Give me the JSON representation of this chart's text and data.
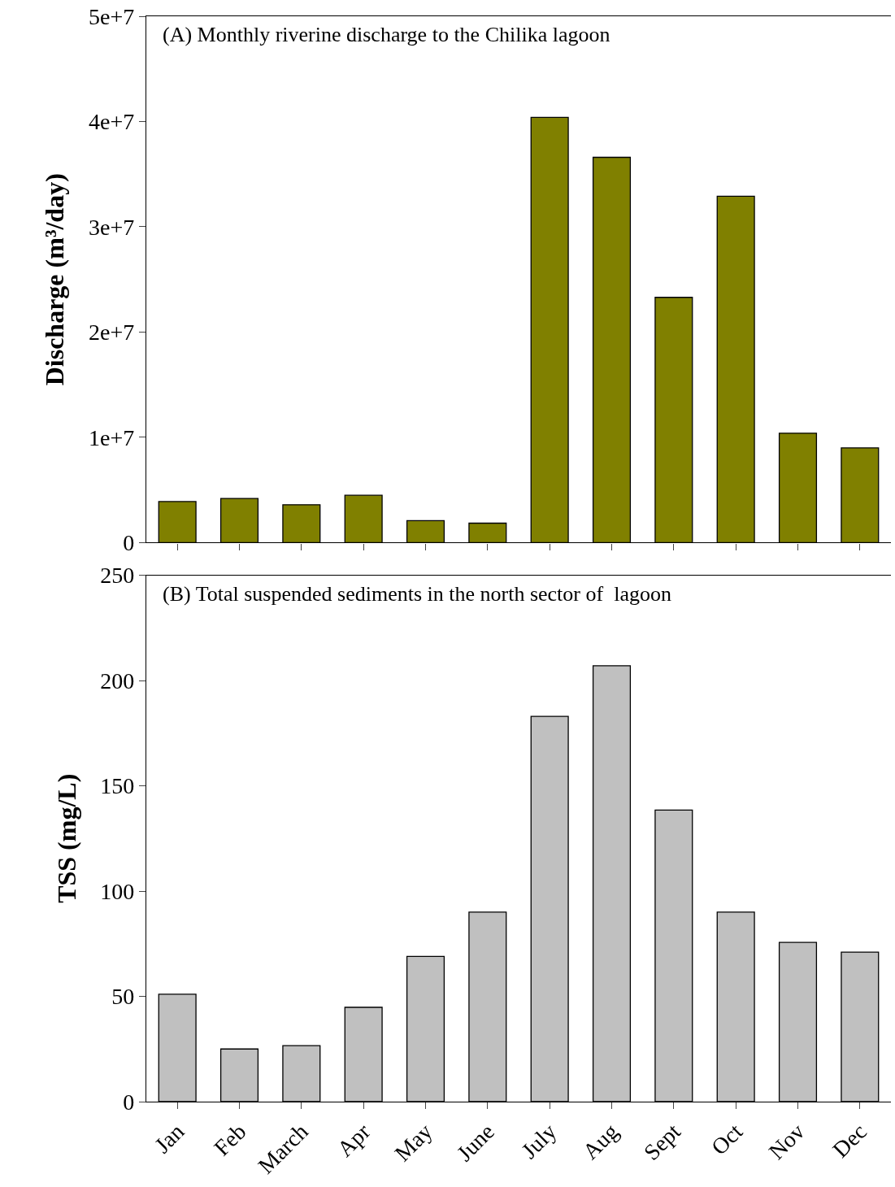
{
  "chart_data": [
    {
      "type": "bar",
      "title": "(A) Monthly riverine discharge to the Chilika lagoon",
      "ylabel": "Discharge (m³/day)",
      "categories": [
        null,
        null,
        null,
        null,
        null,
        null,
        null,
        null,
        null,
        null,
        null,
        null
      ],
      "values": [
        3900000,
        4200000,
        3600000,
        4500000,
        2100000,
        1850000,
        40400000,
        36600000,
        23300000,
        32900000,
        10400000,
        9000000
      ],
      "color": "#808000",
      "ylim": [
        0,
        50000000
      ],
      "yticks": [
        0,
        {
          "value": 10000000,
          "label": "1e+7"
        },
        {
          "value": 20000000,
          "label": "2e+7"
        },
        {
          "value": 30000000,
          "label": "3e+7"
        },
        {
          "value": 40000000,
          "label": "4e+7"
        },
        {
          "value": 50000000,
          "label": "5e+7"
        }
      ],
      "tick_labels": "y",
      "legend": false
    },
    {
      "type": "bar",
      "title": "(B) Total suspended sediments in the north sector of  lagoon",
      "ylabel": "TSS (mg/L)",
      "categories": [
        "Jan",
        "Feb",
        "March",
        "Apr",
        "May",
        "June",
        "July",
        "Aug",
        "Sept",
        "Oct",
        "Nov",
        "Dec"
      ],
      "values": [
        51,
        25,
        26.6,
        44.8,
        69,
        90,
        183,
        207,
        138.5,
        90,
        75.6,
        71
      ],
      "color": "#c0c0c0",
      "ylim": [
        0,
        250
      ],
      "yticks": [
        0,
        50,
        100,
        150,
        200,
        250
      ],
      "legend": false
    }
  ]
}
